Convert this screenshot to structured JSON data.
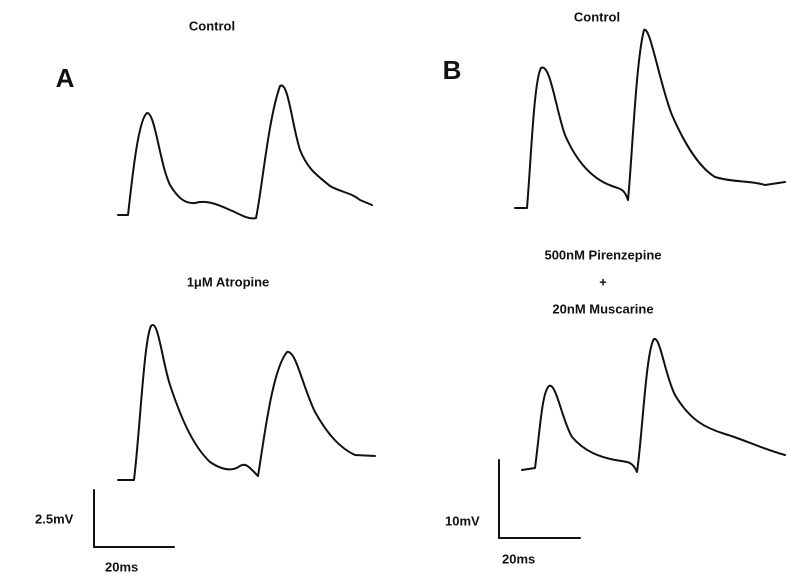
{
  "panels": [
    {
      "label": "A",
      "top_title": "Control",
      "bottom_title": [
        "1μM Atropine"
      ],
      "scale_y": "2.5mV",
      "scale_x": "20ms"
    },
    {
      "label": "B",
      "top_title": "Control",
      "bottom_title": [
        "500nM Pirenzepine",
        "+",
        "20nM Muscarine"
      ],
      "scale_y": "10mV",
      "scale_x": "20ms"
    }
  ]
}
